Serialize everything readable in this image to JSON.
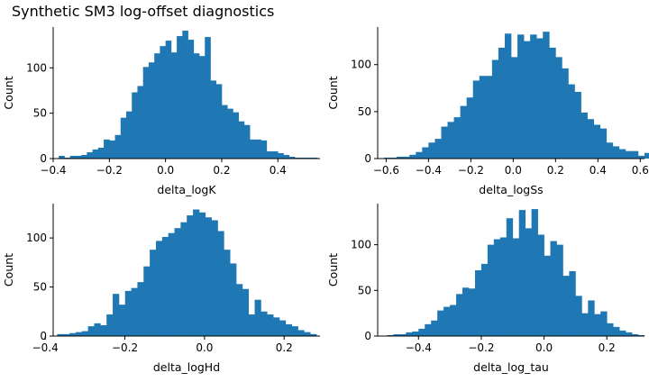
{
  "title": "Synthetic SM3 log-offset diagnostics",
  "colors": {
    "bar": "#1f77b4",
    "axis": "#000000"
  },
  "chart_data": [
    {
      "type": "bar",
      "xlabel": "delta_logK",
      "ylabel": "Count",
      "xlim": [
        -0.4,
        0.55
      ],
      "ylim": [
        0,
        145
      ],
      "xticks": [
        -0.4,
        -0.2,
        0.0,
        0.2,
        0.4
      ],
      "xtick_labels": [
        "−0.4",
        "−0.2",
        "0.0",
        "0.2",
        "0.4"
      ],
      "yticks": [
        0,
        50,
        100
      ],
      "bin_start": -0.38,
      "bin_width": 0.02,
      "values": [
        3,
        1,
        3,
        3,
        4,
        7,
        10,
        12,
        21,
        20,
        26,
        45,
        52,
        73,
        80,
        101,
        106,
        116,
        124,
        130,
        117,
        135,
        141,
        131,
        116,
        113,
        134,
        86,
        82,
        59,
        55,
        51,
        41,
        37,
        21,
        21,
        20,
        8,
        8,
        6,
        4,
        2,
        1,
        1,
        1,
        1,
        0,
        0
      ]
    },
    {
      "type": "bar",
      "xlabel": "delta_logSs",
      "ylabel": "Count",
      "xlim": [
        -0.64,
        0.62
      ],
      "ylim": [
        0,
        140
      ],
      "xticks": [
        -0.6,
        -0.4,
        -0.2,
        0.0,
        0.2,
        0.4,
        0.6
      ],
      "xtick_labels": [
        "−0.6",
        "−0.4",
        "−0.2",
        "0.0",
        "0.2",
        "0.4",
        "0.6"
      ],
      "yticks": [
        0,
        50,
        100
      ],
      "bin_start": -0.61,
      "bin_width": 0.03,
      "values": [
        1,
        1,
        2,
        2,
        4,
        7,
        12,
        17,
        21,
        34,
        39,
        44,
        56,
        65,
        83,
        88,
        88,
        105,
        118,
        133,
        108,
        132,
        125,
        132,
        128,
        135,
        118,
        108,
        96,
        79,
        71,
        49,
        42,
        36,
        32,
        17,
        13,
        10,
        8,
        8,
        3,
        6,
        4,
        4
      ]
    },
    {
      "type": "bar",
      "xlabel": "delta_logHd",
      "ylabel": "Count",
      "xlim": [
        -0.38,
        0.29
      ],
      "ylim": [
        0,
        135
      ],
      "xticks": [
        -0.4,
        -0.2,
        0.0,
        0.2
      ],
      "xtick_labels": [
        "−0.4",
        "−0.2",
        "0.0",
        "0.2"
      ],
      "yticks": [
        0,
        50,
        100
      ],
      "bin_start": -0.37,
      "bin_width": 0.0155,
      "values": [
        2,
        2,
        3,
        4,
        5,
        10,
        13,
        11,
        22,
        43,
        32,
        46,
        49,
        55,
        71,
        88,
        97,
        101,
        105,
        110,
        116,
        123,
        129,
        126,
        121,
        118,
        107,
        88,
        74,
        53,
        48,
        22,
        37,
        25,
        22,
        19,
        16,
        12,
        10,
        6,
        4,
        2
      ]
    },
    {
      "type": "bar",
      "xlabel": "delta_log_tau",
      "ylabel": "Count",
      "xlim": [
        -0.53,
        0.32
      ],
      "ylim": [
        0,
        145
      ],
      "xticks": [
        -0.4,
        -0.2,
        0.0,
        0.2
      ],
      "xtick_labels": [
        "−0.4",
        "−0.2",
        "0.0",
        "0.2"
      ],
      "yticks": [
        0,
        50,
        100
      ],
      "bin_start": -0.5,
      "bin_width": 0.02,
      "values": [
        1,
        2,
        2,
        4,
        5,
        8,
        13,
        17,
        28,
        32,
        34,
        46,
        53,
        52,
        72,
        79,
        100,
        106,
        108,
        129,
        107,
        138,
        118,
        139,
        111,
        88,
        104,
        100,
        66,
        71,
        44,
        25,
        39,
        24,
        27,
        14,
        10,
        6,
        4,
        2,
        1
      ]
    }
  ]
}
